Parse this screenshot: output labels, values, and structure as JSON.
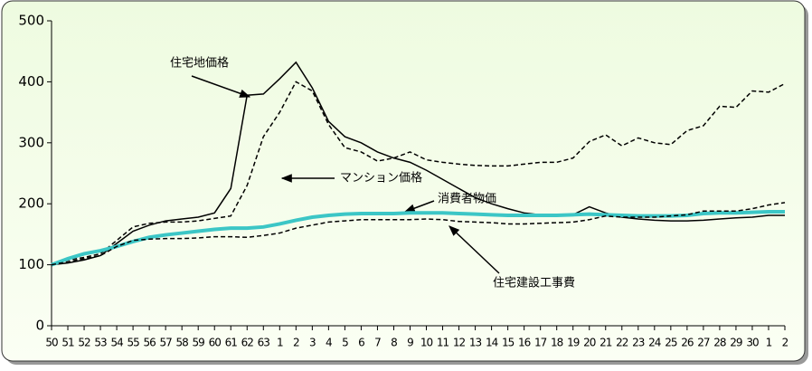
{
  "chart_data": {
    "type": "line",
    "categories": [
      "50",
      "51",
      "52",
      "53",
      "54",
      "55",
      "56",
      "57",
      "58",
      "59",
      "60",
      "61",
      "62",
      "63",
      "1",
      "2",
      "3",
      "4",
      "5",
      "6",
      "7",
      "8",
      "9",
      "10",
      "11",
      "12",
      "13",
      "14",
      "15",
      "16",
      "17",
      "18",
      "19",
      "20",
      "21",
      "22",
      "23",
      "24",
      "25",
      "26",
      "27",
      "28",
      "29",
      "30",
      "1",
      "2"
    ],
    "ylim": [
      0,
      500
    ],
    "yticks": [
      0,
      100,
      200,
      300,
      400,
      500
    ],
    "series": [
      {
        "name": "住宅地価格",
        "color": "#000000",
        "dash": false,
        "width": 1.5,
        "values": [
          100,
          103,
          108,
          115,
          135,
          155,
          165,
          172,
          175,
          178,
          185,
          225,
          378,
          380,
          405,
          432,
          390,
          335,
          310,
          300,
          285,
          275,
          268,
          255,
          240,
          225,
          210,
          200,
          192,
          185,
          182,
          180,
          182,
          195,
          185,
          178,
          175,
          173,
          172,
          172,
          173,
          175,
          177,
          178,
          181,
          181
        ]
      },
      {
        "name": "マンション価格",
        "color": "#000000",
        "dash": true,
        "width": 1.5,
        "values": [
          100,
          108,
          112,
          118,
          140,
          162,
          168,
          170,
          170,
          172,
          176,
          180,
          230,
          310,
          350,
          400,
          385,
          330,
          292,
          285,
          270,
          275,
          285,
          272,
          268,
          265,
          263,
          262,
          262,
          265,
          268,
          268,
          275,
          302,
          313,
          295,
          308,
          300,
          297,
          320,
          328,
          360,
          358,
          385,
          383,
          397
        ]
      },
      {
        "name": "消費者物価",
        "color": "#3cc6c6",
        "dash": false,
        "width": 4,
        "values": [
          100,
          110,
          118,
          123,
          130,
          138,
          145,
          149,
          152,
          155,
          158,
          160,
          160,
          162,
          167,
          173,
          178,
          181,
          183,
          184,
          184,
          184,
          185,
          185,
          185,
          184,
          183,
          182,
          181,
          181,
          181,
          181,
          182,
          183,
          182,
          181,
          180,
          180,
          180,
          181,
          184,
          185,
          185,
          186,
          187,
          187
        ]
      },
      {
        "name": "住宅建設工事費",
        "color": "#000000",
        "dash": true,
        "width": 1.5,
        "values": [
          100,
          105,
          110,
          115,
          130,
          140,
          142,
          143,
          143,
          144,
          146,
          146,
          145,
          148,
          152,
          160,
          165,
          170,
          172,
          174,
          174,
          174,
          174,
          175,
          174,
          171,
          170,
          169,
          167,
          167,
          168,
          169,
          170,
          174,
          180,
          178,
          178,
          178,
          180,
          182,
          188,
          188,
          188,
          192,
          198,
          202
        ]
      }
    ]
  }
}
